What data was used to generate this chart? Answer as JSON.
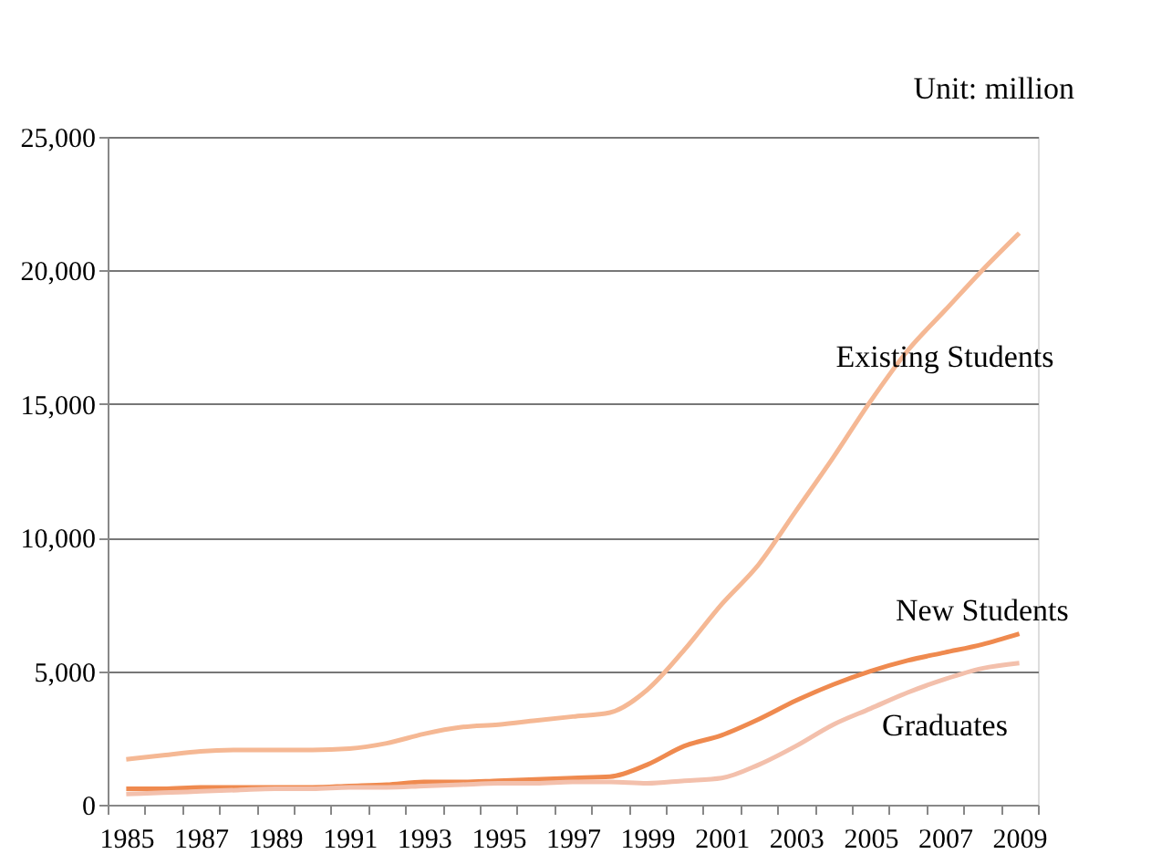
{
  "chart_data": {
    "type": "line",
    "annotations": [
      "Unit:  million"
    ],
    "categories": [
      "1985",
      null,
      "1987",
      null,
      "1989",
      null,
      "1991",
      null,
      "1993",
      null,
      "1995",
      null,
      "1997",
      null,
      "1999",
      null,
      "2001",
      null,
      "2003",
      null,
      "2005",
      null,
      "2007",
      null,
      "2009"
    ],
    "series": [
      {
        "name": "Existing Students",
        "color": "#f5b894",
        "values": [
          1700,
          1850,
          2000,
          2050,
          2050,
          2050,
          2100,
          2300,
          2650,
          2900,
          3000,
          3150,
          3300,
          3450,
          4300,
          5800,
          7500,
          9000,
          11000,
          13000,
          15100,
          17000,
          18500,
          20000,
          21400
        ]
      },
      {
        "name": "New Students",
        "color": "#ef8a4f",
        "values": [
          600,
          600,
          650,
          650,
          650,
          650,
          700,
          750,
          850,
          850,
          900,
          950,
          1000,
          1050,
          1500,
          2200,
          2600,
          3200,
          3900,
          4500,
          5000,
          5400,
          5700,
          6000,
          6400
        ]
      },
      {
        "name": "Graduates",
        "color": "#f3c0ac",
        "values": [
          400,
          450,
          500,
          550,
          600,
          600,
          650,
          650,
          700,
          750,
          800,
          800,
          850,
          850,
          800,
          900,
          1000,
          1500,
          2200,
          3000,
          3600,
          4200,
          4700,
          5100,
          5300
        ]
      }
    ],
    "ylim": [
      0,
      25000
    ],
    "yticks": [
      0,
      {
        "value": 5000,
        "label": "5,000"
      },
      {
        "value": 10000,
        "label": "10,000"
      },
      {
        "value": 15000,
        "label": "15,000"
      },
      {
        "value": 20000,
        "label": "20,000"
      },
      {
        "value": 25000,
        "label": "25,000"
      }
    ],
    "grid": "y",
    "legend": false
  }
}
